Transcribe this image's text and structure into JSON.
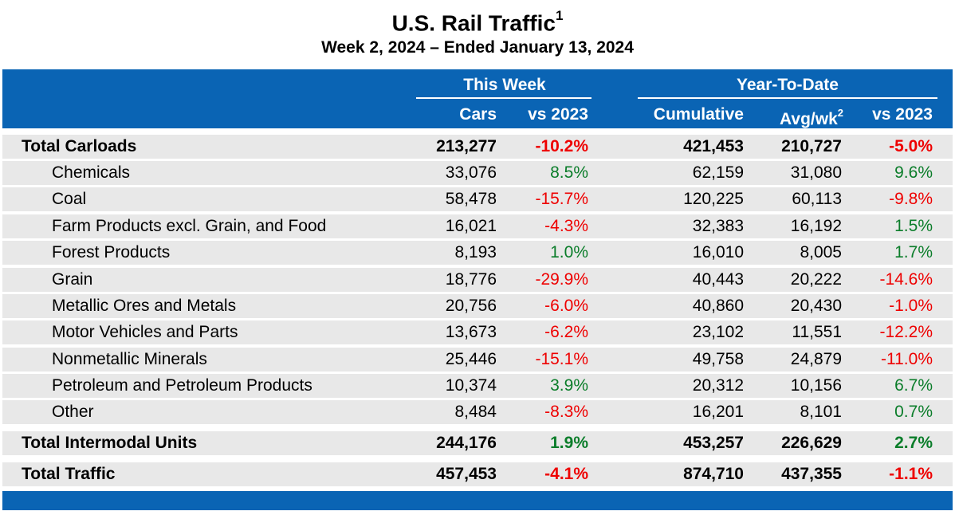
{
  "title": "U.S. Rail Traffic",
  "title_footnote": "1",
  "subtitle": "Week 2, 2024 – Ended January 13, 2024",
  "header": {
    "this_week": "This Week",
    "ytd": "Year-To-Date",
    "cars": "Cars",
    "vs2023": "vs 2023",
    "cumulative": "Cumulative",
    "avgwk": "Avg/wk",
    "avgwk_footnote": "2",
    "vs2023_ytd": "vs 2023"
  },
  "colors": {
    "band": "#0a64b4",
    "row": "#e8e8e8",
    "negative": "#ee0000",
    "positive": "#0b7d2a"
  },
  "rows": [
    {
      "label": "Total Carloads",
      "cars": "213,277",
      "vs": "-10.2%",
      "cum": "421,453",
      "avg": "210,727",
      "ytdvs": "-5.0%"
    },
    {
      "label": "Chemicals",
      "cars": "33,076",
      "vs": "8.5%",
      "cum": "62,159",
      "avg": "31,080",
      "ytdvs": "9.6%"
    },
    {
      "label": "Coal",
      "cars": "58,478",
      "vs": "-15.7%",
      "cum": "120,225",
      "avg": "60,113",
      "ytdvs": "-9.8%"
    },
    {
      "label": "Farm Products excl. Grain, and Food",
      "cars": "16,021",
      "vs": "-4.3%",
      "cum": "32,383",
      "avg": "16,192",
      "ytdvs": "1.5%"
    },
    {
      "label": "Forest Products",
      "cars": "8,193",
      "vs": "1.0%",
      "cum": "16,010",
      "avg": "8,005",
      "ytdvs": "1.7%"
    },
    {
      "label": "Grain",
      "cars": "18,776",
      "vs": "-29.9%",
      "cum": "40,443",
      "avg": "20,222",
      "ytdvs": "-14.6%"
    },
    {
      "label": "Metallic Ores and Metals",
      "cars": "20,756",
      "vs": "-6.0%",
      "cum": "40,860",
      "avg": "20,430",
      "ytdvs": "-1.0%"
    },
    {
      "label": "Motor Vehicles and Parts",
      "cars": "13,673",
      "vs": "-6.2%",
      "cum": "23,102",
      "avg": "11,551",
      "ytdvs": "-12.2%"
    },
    {
      "label": "Nonmetallic Minerals",
      "cars": "25,446",
      "vs": "-15.1%",
      "cum": "49,758",
      "avg": "24,879",
      "ytdvs": "-11.0%"
    },
    {
      "label": "Petroleum and Petroleum Products",
      "cars": "10,374",
      "vs": "3.9%",
      "cum": "20,312",
      "avg": "10,156",
      "ytdvs": "6.7%"
    },
    {
      "label": "Other",
      "cars": "8,484",
      "vs": "-8.3%",
      "cum": "16,201",
      "avg": "8,101",
      "ytdvs": "0.7%"
    },
    {
      "label": "Total Intermodal Units",
      "cars": "244,176",
      "vs": "1.9%",
      "cum": "453,257",
      "avg": "226,629",
      "ytdvs": "2.7%"
    },
    {
      "label": "Total Traffic",
      "cars": "457,453",
      "vs": "-4.1%",
      "cum": "874,710",
      "avg": "437,355",
      "ytdvs": "-1.1%"
    }
  ]
}
